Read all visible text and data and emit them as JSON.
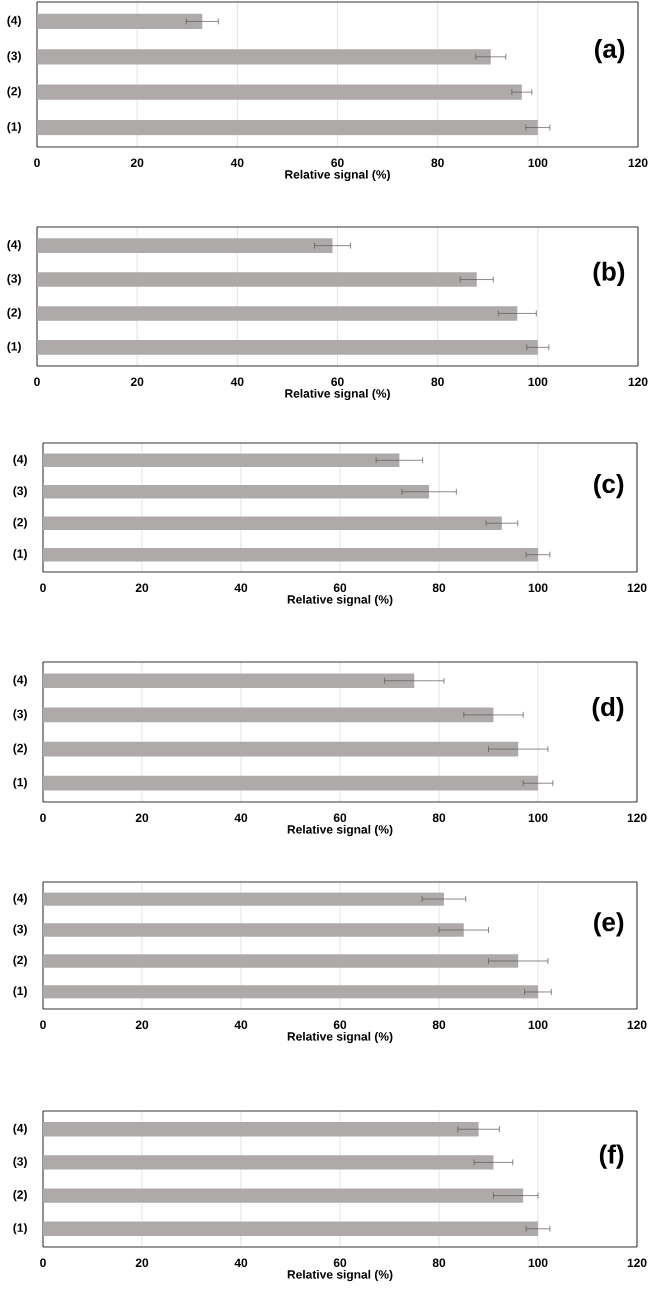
{
  "chart_data": [
    {
      "type": "bar",
      "orientation": "horizontal",
      "title": "(a)",
      "xlabel": "Relative signal (%)",
      "categories": [
        "(4)",
        "(3)",
        "(2)",
        "(1)"
      ],
      "values": [
        33,
        90.6,
        96.8,
        100
      ],
      "errors": [
        3.2,
        3,
        2,
        2.4
      ],
      "color": "#aeaaaa",
      "xlim": [
        0,
        120
      ],
      "xticks": [
        0,
        20,
        40,
        60,
        80,
        100,
        120
      ],
      "grid": "x"
    },
    {
      "type": "bar",
      "orientation": "horizontal",
      "title": "(b)",
      "xlabel": "Relative signal (%)",
      "categories": [
        "(4)",
        "(3)",
        "(2)",
        "(1)"
      ],
      "values": [
        59,
        87.8,
        95.9,
        100
      ],
      "errors": [
        3.6,
        3.3,
        3.8,
        2.2
      ],
      "color": "#aeaaaa",
      "xlim": [
        0,
        120
      ],
      "xticks": [
        0,
        20,
        40,
        60,
        80,
        100,
        120
      ],
      "grid": "x"
    },
    {
      "type": "bar",
      "orientation": "horizontal",
      "title": "(c)",
      "xlabel": "Relative signal (%)",
      "categories": [
        "(4)",
        "(3)",
        "(2)",
        "(1)"
      ],
      "values": [
        72,
        78,
        92.7,
        100
      ],
      "errors": [
        4.7,
        5.5,
        3.2,
        2.4
      ],
      "color": "#aeaaaa",
      "xlim": [
        0,
        120
      ],
      "xticks": [
        0,
        20,
        40,
        60,
        80,
        100,
        120
      ],
      "grid": "x"
    },
    {
      "type": "bar",
      "orientation": "horizontal",
      "title": "(d)",
      "xlabel": "Relative signal (%)",
      "categories": [
        "(4)",
        "(3)",
        "(2)",
        "(1)"
      ],
      "values": [
        75,
        91,
        96,
        100
      ],
      "errors": [
        6,
        6,
        6,
        3
      ],
      "color": "#aeaaaa",
      "xlim": [
        0,
        120
      ],
      "xticks": [
        0,
        20,
        40,
        60,
        80,
        100,
        120
      ],
      "grid": "x"
    },
    {
      "type": "bar",
      "orientation": "horizontal",
      "title": "(e)",
      "xlabel": "Relative signal (%)",
      "categories": [
        "(4)",
        "(3)",
        "(2)",
        "(1)"
      ],
      "values": [
        81,
        85,
        96,
        100
      ],
      "errors": [
        4.4,
        5,
        6,
        2.7
      ],
      "color": "#aeaaaa",
      "xlim": [
        0,
        120
      ],
      "xticks": [
        0,
        20,
        40,
        60,
        80,
        100,
        120
      ],
      "grid": "x"
    },
    {
      "type": "bar",
      "orientation": "horizontal",
      "title": "(f)",
      "xlabel": "Relative signal (%)",
      "categories": [
        "(4)",
        "(3)",
        "(2)",
        "(1)"
      ],
      "values": [
        88,
        91,
        97,
        100
      ],
      "errors": [
        4.2,
        3.9,
        [
          91,
          100
        ],
        2.4
      ],
      "color": "#aeaaaa",
      "xlim": [
        0,
        120
      ],
      "xticks": [
        0,
        20,
        40,
        60,
        80,
        100,
        120
      ],
      "grid": "x"
    }
  ]
}
